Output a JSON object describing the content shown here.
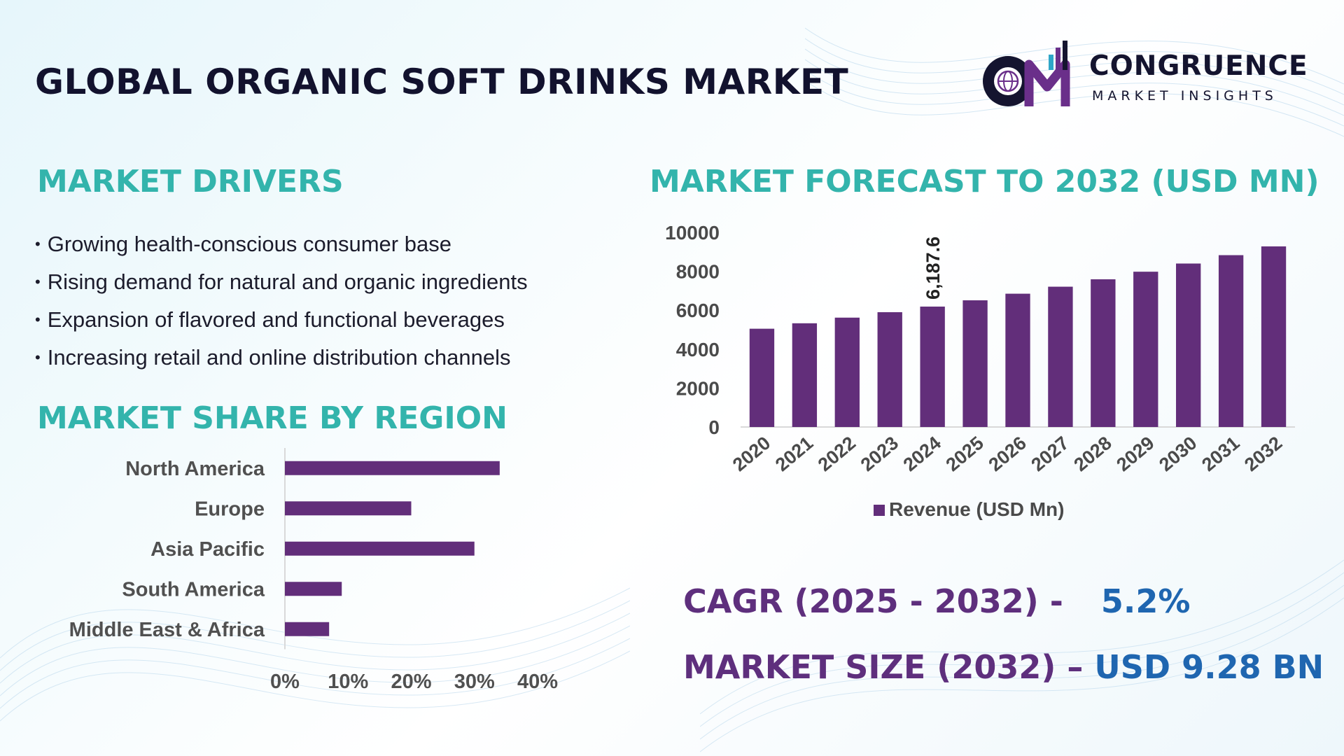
{
  "title": "GLOBAL ORGANIC SOFT DRINKS MARKET",
  "logo": {
    "name": "CONGRUENCE",
    "tagline": "MARKET INSIGHTS"
  },
  "drivers": {
    "heading": "MARKET DRIVERS",
    "items": [
      "Growing health-conscious consumer base",
      "Rising demand for natural and organic ingredients",
      "Expansion of flavored and functional beverages",
      "Increasing retail and online distribution channels"
    ]
  },
  "region": {
    "heading": "MARKET SHARE BY REGION"
  },
  "forecast": {
    "heading": "MARKET FORECAST TO 2032 (USD MN)"
  },
  "stats": {
    "cagr_label": "CAGR (2025 - 2032) -",
    "cagr_value": "5.2%",
    "size_label": "MARKET SIZE (2032) –",
    "size_value": "USD 9.28 BN"
  },
  "colors": {
    "bar": "#622e7a",
    "heading": "#33b4ac",
    "stat_label": "#5e2f7d",
    "stat_value": "#1f66b0"
  },
  "chart_data": [
    {
      "type": "bar",
      "orientation": "vertical",
      "categories": [
        "2020",
        "2021",
        "2022",
        "2023",
        "2024",
        "2025",
        "2026",
        "2027",
        "2028",
        "2029",
        "2030",
        "2031",
        "2032"
      ],
      "series": [
        {
          "name": "Revenue (USD Mn)",
          "values": [
            5050,
            5330,
            5620,
            5900,
            6187.6,
            6510,
            6850,
            7210,
            7590,
            7980,
            8400,
            8830,
            9280
          ]
        }
      ],
      "data_labels": [
        {
          "category": "2024",
          "text": "6,187.6"
        }
      ],
      "yticks": [
        0,
        2000,
        4000,
        6000,
        8000,
        10000
      ],
      "ylim": [
        0,
        10000
      ],
      "legend": "bottom",
      "grid": false
    },
    {
      "type": "bar",
      "orientation": "horizontal",
      "categories": [
        "North America",
        "Europe",
        "Asia Pacific",
        "South America",
        "Middle East & Africa"
      ],
      "values": [
        34,
        20,
        30,
        9,
        7
      ],
      "xticks": [
        "0%",
        "10%",
        "20%",
        "30%",
        "40%"
      ],
      "xlim": [
        0,
        40
      ],
      "grid": false
    }
  ]
}
